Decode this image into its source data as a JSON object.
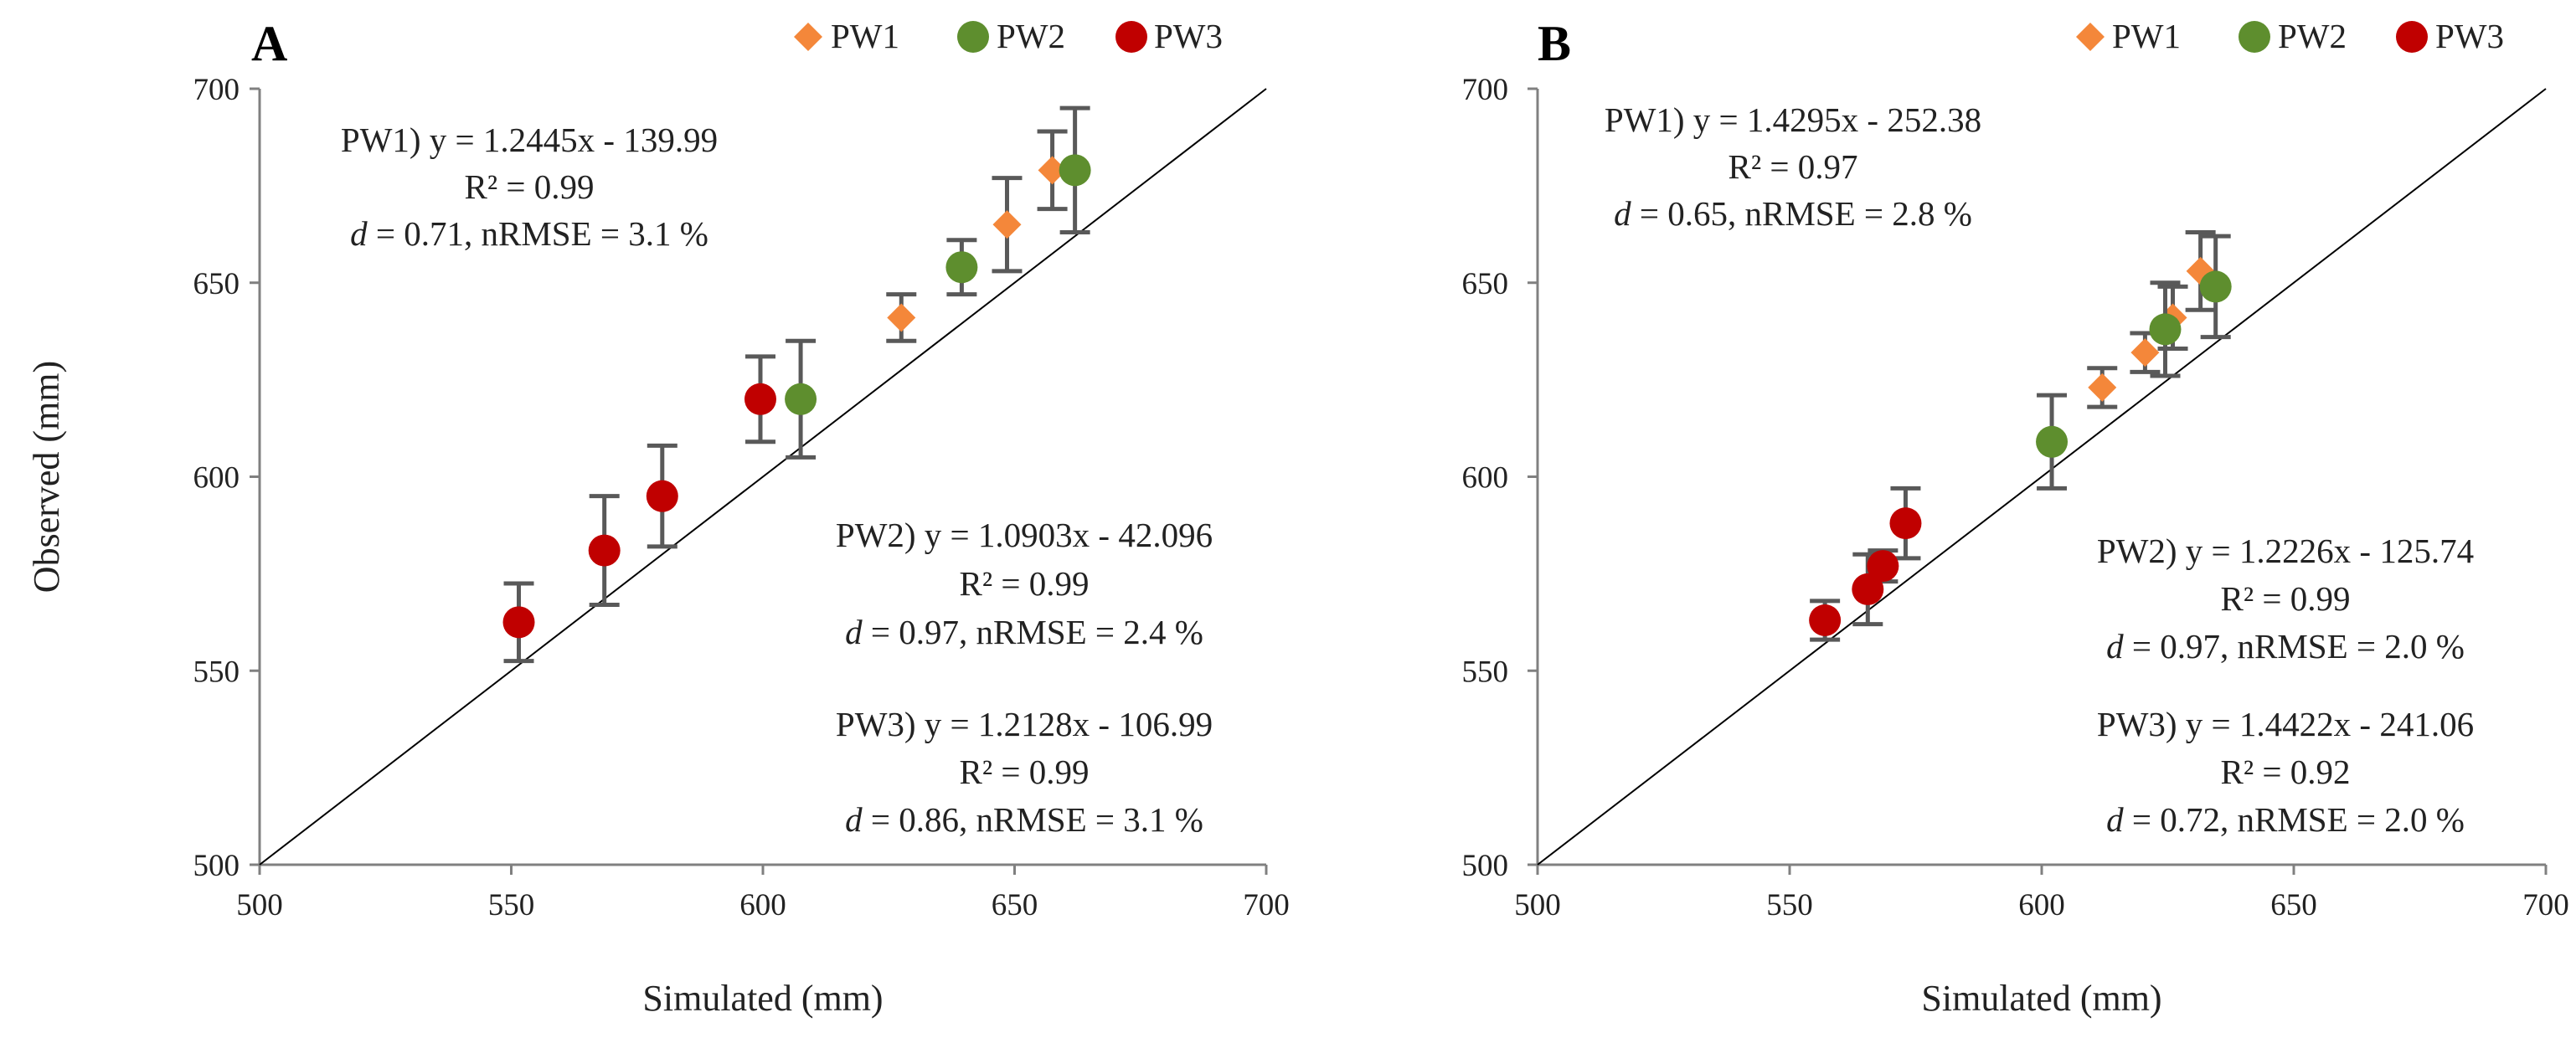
{
  "colors": {
    "PW1": "#F4873A",
    "PW2": "#5E8E2E",
    "PW3": "#C00000",
    "axis": "#808080",
    "errorbar": "#595959"
  },
  "chart_data": [
    {
      "type": "scatter",
      "panel_label": "A",
      "xlabel": "Simulated (mm)",
      "ylabel": "Observed (mm)",
      "xlim": [
        500,
        700
      ],
      "ylim": [
        500,
        700
      ],
      "xticks": [
        "500",
        "550",
        "600",
        "650",
        "700"
      ],
      "yticks": [
        "500",
        "550",
        "600",
        "650",
        "700"
      ],
      "legend": [
        "PW1",
        "PW2",
        "PW3"
      ],
      "series": [
        {
          "name": "PW1",
          "marker": "diamond",
          "points": [
            {
              "x": 627.5,
              "y": 641,
              "err": 6
            },
            {
              "x": 648.5,
              "y": 665,
              "err": 12
            },
            {
              "x": 657.5,
              "y": 679,
              "err": 10
            }
          ]
        },
        {
          "name": "PW2",
          "marker": "circle",
          "points": [
            {
              "x": 607.5,
              "y": 620,
              "err": 15
            },
            {
              "x": 639.5,
              "y": 654,
              "err": 7
            },
            {
              "x": 662,
              "y": 679,
              "err": 16
            }
          ]
        },
        {
          "name": "PW3",
          "marker": "circle",
          "points": [
            {
              "x": 551.5,
              "y": 562.5,
              "err": 10
            },
            {
              "x": 568.5,
              "y": 581,
              "err": 14
            },
            {
              "x": 580,
              "y": 595,
              "err": 13
            },
            {
              "x": 599.5,
              "y": 620,
              "err": 11
            }
          ]
        }
      ],
      "annotations": [
        {
          "l1": "PW1) y = 1.2445x  - 139.99",
          "l2": "R² = 0.99",
          "l3_italic": "d",
          "l3_rest": " = 0.71, nRMSE = 3.1 %"
        },
        {
          "l1": "PW2) y = 1.0903x  - 42.096",
          "l2": "R² = 0.99",
          "l3_italic": "d",
          "l3_rest": " = 0.97, nRMSE = 2.4 %"
        },
        {
          "l1": "PW3) y = 1.2128x  - 106.99",
          "l2": "R² = 0.99",
          "l3_italic": "d",
          "l3_rest": " = 0.86, nRMSE = 3.1 %"
        }
      ]
    },
    {
      "type": "scatter",
      "panel_label": "B",
      "xlabel": "Simulated (mm)",
      "ylabel": "",
      "xlim": [
        500,
        700
      ],
      "ylim": [
        500,
        700
      ],
      "xticks": [
        "500",
        "550",
        "600",
        "650",
        "700"
      ],
      "yticks": [
        "500",
        "550",
        "600",
        "650",
        "700"
      ],
      "legend": [
        "PW1",
        "PW2",
        "PW3"
      ],
      "series": [
        {
          "name": "PW1",
          "marker": "diamond",
          "points": [
            {
              "x": 612,
              "y": 623,
              "err": 5
            },
            {
              "x": 620.5,
              "y": 632,
              "err": 5
            },
            {
              "x": 626,
              "y": 641,
              "err": 8
            },
            {
              "x": 631.5,
              "y": 653,
              "err": 10
            }
          ]
        },
        {
          "name": "PW2",
          "marker": "circle",
          "points": [
            {
              "x": 602,
              "y": 609,
              "err": 12
            },
            {
              "x": 624.5,
              "y": 638,
              "err": 12
            },
            {
              "x": 634.5,
              "y": 649,
              "err": 13
            }
          ]
        },
        {
          "name": "PW3",
          "marker": "circle",
          "points": [
            {
              "x": 557,
              "y": 563,
              "err": 5
            },
            {
              "x": 565.5,
              "y": 571,
              "err": 9
            },
            {
              "x": 568.5,
              "y": 577,
              "err": 4
            },
            {
              "x": 573,
              "y": 588,
              "err": 9
            }
          ]
        }
      ],
      "annotations": [
        {
          "l1": "PW1) y = 1.4295x  - 252.38",
          "l2": "R² = 0.97",
          "l3_italic": "d",
          "l3_rest": " = 0.65, nRMSE = 2.8 %"
        },
        {
          "l1": "PW2) y = 1.2226x  - 125.74",
          "l2": "R² = 0.99",
          "l3_italic": "d",
          "l3_rest": " = 0.97, nRMSE = 2.0 %"
        },
        {
          "l1": "PW3) y = 1.4422x  - 241.06",
          "l2": "R² = 0.92",
          "l3_italic": "d",
          "l3_rest": " = 0.72, nRMSE = 2.0 %"
        }
      ]
    }
  ]
}
